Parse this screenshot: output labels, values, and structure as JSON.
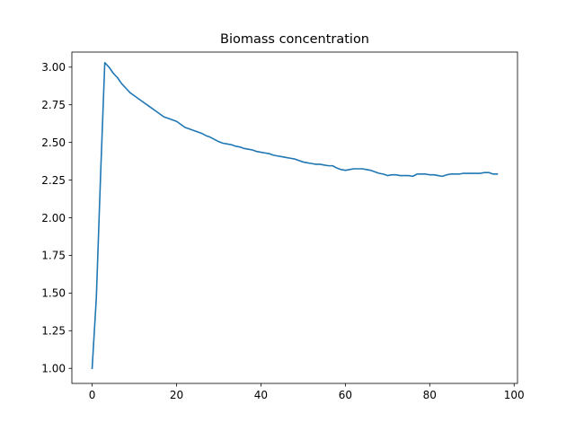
{
  "chart_data": {
    "type": "line",
    "title": "Biomass concentration",
    "xlabel": "",
    "ylabel": "",
    "xlim": [
      -4.8,
      100.8
    ],
    "ylim": [
      0.9,
      3.1
    ],
    "xticks": [
      0,
      20,
      40,
      60,
      80,
      100
    ],
    "yticks": [
      1.0,
      1.25,
      1.5,
      1.75,
      2.0,
      2.25,
      2.5,
      2.75,
      3.0
    ],
    "grid": false,
    "legend": "none",
    "colors": {
      "line": "#1f77b4",
      "axes": "#000000",
      "background": "#ffffff"
    },
    "series": [
      {
        "x": [
          0,
          1,
          2,
          3,
          4,
          5,
          6,
          7,
          8,
          9,
          10,
          11,
          12,
          13,
          14,
          15,
          16,
          17,
          18,
          19,
          20,
          21,
          22,
          23,
          24,
          25,
          26,
          27,
          28,
          29,
          30,
          31,
          32,
          33,
          34,
          35,
          36,
          37,
          38,
          39,
          40,
          41,
          42,
          43,
          44,
          45,
          46,
          47,
          48,
          49,
          50,
          51,
          52,
          53,
          54,
          55,
          56,
          57,
          58,
          59,
          60,
          61,
          62,
          63,
          64,
          65,
          66,
          67,
          68,
          69,
          70,
          71,
          72,
          73,
          74,
          75,
          76,
          77,
          78,
          79,
          80,
          81,
          82,
          83,
          84,
          85,
          86,
          87,
          88,
          89,
          90,
          91,
          92,
          93,
          94,
          95,
          96
        ],
        "y": [
          1.0,
          1.47,
          2.28,
          3.03,
          3.0,
          2.96,
          2.93,
          2.89,
          2.86,
          2.83,
          2.81,
          2.79,
          2.77,
          2.75,
          2.73,
          2.71,
          2.69,
          2.67,
          2.66,
          2.65,
          2.64,
          2.62,
          2.6,
          2.59,
          2.58,
          2.57,
          2.56,
          2.545,
          2.535,
          2.52,
          2.505,
          2.495,
          2.49,
          2.485,
          2.475,
          2.47,
          2.46,
          2.455,
          2.45,
          2.44,
          2.435,
          2.43,
          2.425,
          2.415,
          2.41,
          2.405,
          2.4,
          2.395,
          2.39,
          2.38,
          2.37,
          2.365,
          2.36,
          2.355,
          2.355,
          2.35,
          2.345,
          2.345,
          2.33,
          2.32,
          2.315,
          2.32,
          2.325,
          2.325,
          2.325,
          2.32,
          2.315,
          2.305,
          2.295,
          2.29,
          2.28,
          2.285,
          2.285,
          2.28,
          2.28,
          2.28,
          2.275,
          2.29,
          2.29,
          2.29,
          2.285,
          2.285,
          2.28,
          2.275,
          2.285,
          2.29,
          2.29,
          2.29,
          2.295,
          2.295,
          2.295,
          2.295,
          2.295,
          2.3,
          2.3,
          2.29,
          2.29
        ]
      }
    ]
  }
}
